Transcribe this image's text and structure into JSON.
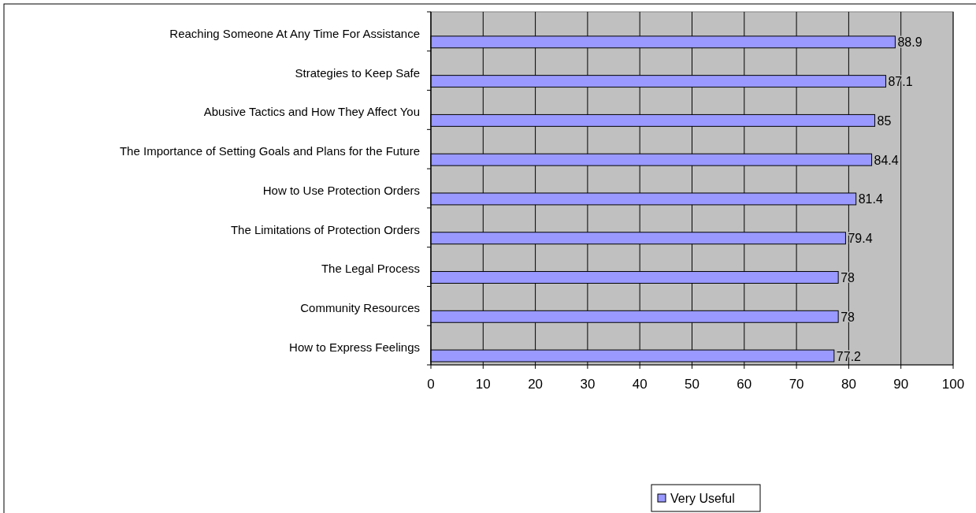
{
  "chart_data": {
    "type": "bar",
    "orientation": "horizontal",
    "categories": [
      "Reaching Someone At Any Time For Assistance",
      "Strategies to Keep Safe",
      "Abusive Tactics and How They Affect You",
      "The Importance of Setting Goals and Plans for the Future",
      "How to Use Protection Orders",
      "The Limitations of Protection Orders",
      "The Legal Process",
      "Community Resources",
      "How to Express Feelings"
    ],
    "series": [
      {
        "name": "Very Useful",
        "color": "#9999ff",
        "values": [
          88.9,
          87.1,
          85,
          84.4,
          81.4,
          79.4,
          78,
          78,
          77.2
        ]
      }
    ],
    "xlim": [
      0,
      100
    ],
    "xticks": [
      0,
      10,
      20,
      30,
      40,
      50,
      60,
      70,
      80,
      90,
      100
    ],
    "grid": "x",
    "legend": "bottom",
    "data_labels": true
  }
}
